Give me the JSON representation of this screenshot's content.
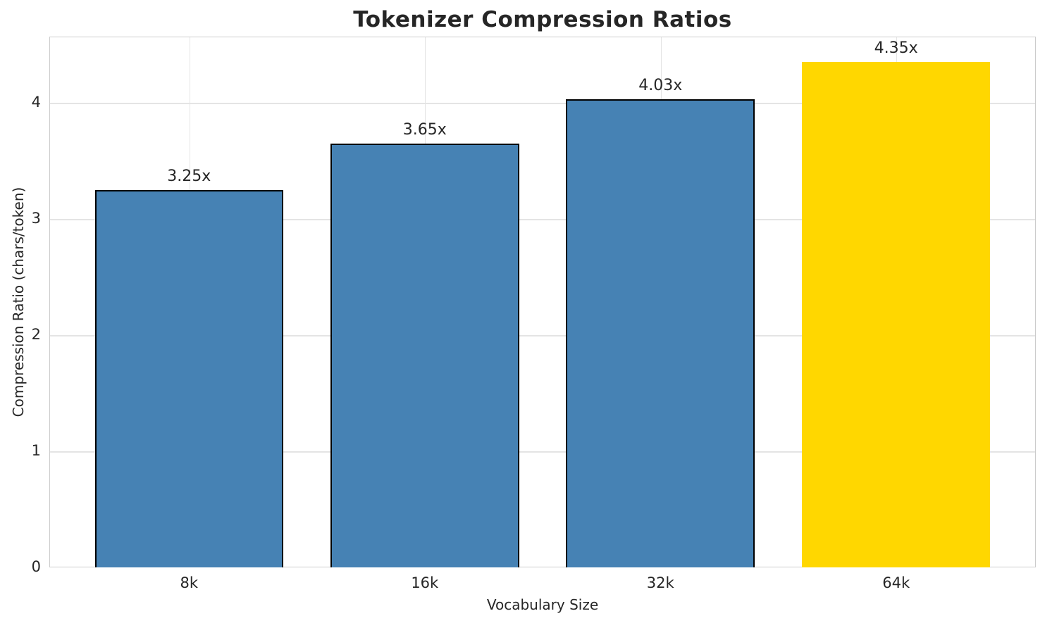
{
  "chart_data": {
    "type": "bar",
    "title": "Tokenizer Compression Ratios",
    "xlabel": "Vocabulary Size",
    "ylabel": "Compression Ratio (chars/token)",
    "categories": [
      "8k",
      "16k",
      "32k",
      "64k"
    ],
    "values": [
      3.25,
      3.65,
      4.03,
      4.35
    ],
    "value_labels": [
      "3.25x",
      "3.65x",
      "4.03x",
      "4.35x"
    ],
    "bar_colors": [
      "#4682b4",
      "#4682b4",
      "#4682b4",
      "#ffd700"
    ],
    "bar_edge_colors": [
      "#000000",
      "#000000",
      "#000000",
      "none"
    ],
    "highlighted_category": "64k",
    "yticks": [
      0,
      1,
      2,
      3,
      4
    ],
    "ylim": [
      0,
      4.57
    ],
    "grid": true,
    "legend": "none",
    "colors": {
      "bar_default": "#4682b4",
      "bar_highlight": "#ffd700",
      "text": "#262626",
      "grid": "#e4e4e4",
      "spine": "#cccccc",
      "background": "#ffffff"
    }
  }
}
